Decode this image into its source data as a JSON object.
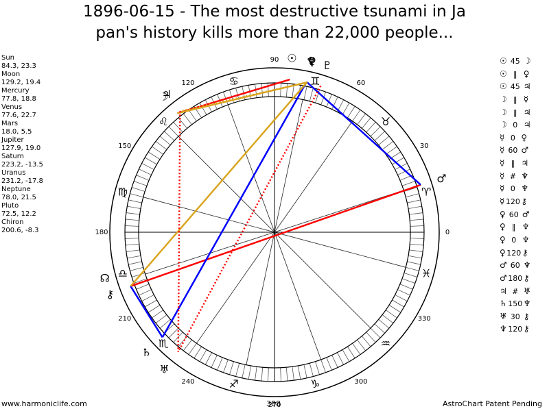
{
  "title": {
    "line1": "1896-06-15 - The most destructive tsunami in Ja",
    "line2": "pan's history kills more than 22,000 people..."
  },
  "planets": [
    {
      "name": "Sun",
      "glyph": "☉",
      "values": "84.3, 23.3"
    },
    {
      "name": "Moon",
      "glyph": "☽",
      "values": "129.2, 19.4"
    },
    {
      "name": "Mercury",
      "glyph": "☿",
      "values": "77.8, 18.8"
    },
    {
      "name": "Venus",
      "glyph": "♀",
      "values": "77.6, 22.7"
    },
    {
      "name": "Mars",
      "glyph": "♂",
      "values": "18.0, 5.5"
    },
    {
      "name": "Jupiter",
      "glyph": "♃",
      "values": "127.9, 19.0"
    },
    {
      "name": "Saturn",
      "glyph": "♄",
      "values": "223.2, -13.5"
    },
    {
      "name": "Uranus",
      "glyph": "♅",
      "values": "231.2, -17.8"
    },
    {
      "name": "Neptune",
      "glyph": "♆",
      "values": "78.0, 21.5"
    },
    {
      "name": "Pluto",
      "glyph": "♇",
      "values": "72.5, 12.2"
    },
    {
      "name": "Chiron",
      "glyph": "⚷",
      "values": "200.6, -8.3"
    }
  ],
  "aspects": [
    {
      "p1": "☉",
      "angle": "45",
      "p2": "☽"
    },
    {
      "p1": "☉",
      "angle": "‖",
      "p2": "♀"
    },
    {
      "p1": "☉",
      "angle": "45",
      "p2": "♃"
    },
    {
      "p1": "☽",
      "angle": "‖",
      "p2": "☿"
    },
    {
      "p1": "☽",
      "angle": "‖",
      "p2": "♃"
    },
    {
      "p1": "☽",
      "angle": "0",
      "p2": "♃"
    },
    {
      "p1": "☿",
      "angle": "0",
      "p2": "♀"
    },
    {
      "p1": "☿",
      "angle": "60",
      "p2": "♂"
    },
    {
      "p1": "☿",
      "angle": "‖",
      "p2": "♃"
    },
    {
      "p1": "☿",
      "angle": "#",
      "p2": "♆"
    },
    {
      "p1": "☿",
      "angle": "0",
      "p2": "♆"
    },
    {
      "p1": "☿",
      "angle": "120",
      "p2": "⚷"
    },
    {
      "p1": "♀",
      "angle": "60",
      "p2": "♂"
    },
    {
      "p1": "♀",
      "angle": "‖",
      "p2": "♆"
    },
    {
      "p1": "♀",
      "angle": "0",
      "p2": "♆"
    },
    {
      "p1": "♀",
      "angle": "120",
      "p2": "⚷"
    },
    {
      "p1": "♂",
      "angle": "60",
      "p2": "♆"
    },
    {
      "p1": "♂",
      "angle": "180",
      "p2": "⚷"
    },
    {
      "p1": "♃",
      "angle": "#",
      "p2": "♅"
    },
    {
      "p1": "♄",
      "angle": "150",
      "p2": "♆"
    },
    {
      "p1": "♅",
      "angle": "30",
      "p2": "⚷"
    },
    {
      "p1": "♆",
      "angle": "120",
      "p2": "⚷"
    }
  ],
  "wheel": {
    "degree_labels": [
      "0",
      "30",
      "60",
      "90",
      "120",
      "150",
      "180",
      "210",
      "240",
      "270",
      "300",
      "330"
    ],
    "signs": [
      {
        "name": "aries",
        "glyph": "♈",
        "lon": 15
      },
      {
        "name": "taurus",
        "glyph": "♉",
        "lon": 45
      },
      {
        "name": "gemini",
        "glyph": "♊",
        "lon": 75
      },
      {
        "name": "cancer",
        "glyph": "♋",
        "lon": 105
      },
      {
        "name": "leo",
        "glyph": "♌",
        "lon": 135
      },
      {
        "name": "virgo",
        "glyph": "♍",
        "lon": 165
      },
      {
        "name": "libra",
        "glyph": "♎",
        "lon": 195
      },
      {
        "name": "scorpio",
        "glyph": "♏",
        "lon": 225
      },
      {
        "name": "sagittarius",
        "glyph": "♐",
        "lon": 255
      },
      {
        "name": "capricorn",
        "glyph": "♑",
        "lon": 285
      },
      {
        "name": "aquarius",
        "glyph": "♒",
        "lon": 315
      },
      {
        "name": "pisces",
        "glyph": "♓",
        "lon": 345
      }
    ],
    "bodies": [
      {
        "name": "sun",
        "glyph": "☉",
        "lon": 84.3
      },
      {
        "name": "moon",
        "glyph": "☽",
        "lon": 129.2
      },
      {
        "name": "mercury",
        "glyph": "☿",
        "lon": 77.8
      },
      {
        "name": "venus",
        "glyph": "♀",
        "lon": 77.6
      },
      {
        "name": "mars",
        "glyph": "♂",
        "lon": 18.0
      },
      {
        "name": "jupiter",
        "glyph": "♃",
        "lon": 127.9
      },
      {
        "name": "saturn",
        "glyph": "♄",
        "lon": 223.2
      },
      {
        "name": "uranus",
        "glyph": "♅",
        "lon": 231.2
      },
      {
        "name": "neptune",
        "glyph": "♆",
        "lon": 78.0
      },
      {
        "name": "pluto",
        "glyph": "♇",
        "lon": 72.5
      },
      {
        "name": "chiron",
        "glyph": "⚷",
        "lon": 200.6
      },
      {
        "name": "node",
        "glyph": "☊",
        "lon": 195
      }
    ],
    "aspect_lines": [
      {
        "from": 18.0,
        "to": 200.6,
        "color": "#ff0000",
        "style": "solid"
      },
      {
        "from": 18.0,
        "to": 77.8,
        "color": "#0000ff",
        "style": "solid"
      },
      {
        "from": 78.0,
        "to": 223.2,
        "color": "#0000ff",
        "style": "solid"
      },
      {
        "from": 200.6,
        "to": 223.2,
        "color": "#0000ff",
        "style": "solid"
      },
      {
        "from": 84.3,
        "to": 129.2,
        "color": "#ff0000",
        "style": "solid"
      },
      {
        "from": 77.8,
        "to": 200.6,
        "color": "#daa520",
        "style": "solid"
      },
      {
        "from": 77.8,
        "to": 129.2,
        "color": "#daa520",
        "style": "solid"
      },
      {
        "from": 77.6,
        "to": 127.9,
        "color": "#daa520",
        "style": "dotted"
      },
      {
        "from": 127.9,
        "to": 231.2,
        "color": "#ff0000",
        "style": "dotted"
      },
      {
        "from": 72.5,
        "to": 231.2,
        "color": "#ff0000",
        "style": "dotted"
      }
    ],
    "house_cusps": [
      18,
      55,
      78,
      110,
      135,
      165,
      198,
      235,
      258,
      290,
      315,
      345
    ]
  },
  "footer": {
    "left": "www.harmoniclife.com",
    "center": "388",
    "right": "AstroChart Patent Pending"
  }
}
